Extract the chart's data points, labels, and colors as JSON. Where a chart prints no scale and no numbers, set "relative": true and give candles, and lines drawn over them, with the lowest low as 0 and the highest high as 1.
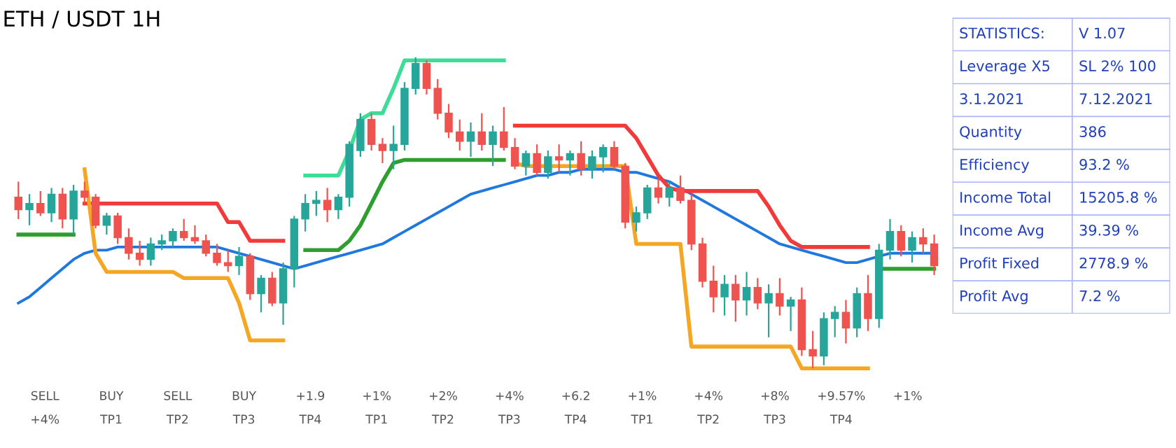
{
  "chart_data": [
    {
      "type": "candlestick",
      "title": "ETH / USDT 1H",
      "relative": true,
      "grid": false,
      "categories": [
        null,
        null,
        null,
        null,
        null,
        null,
        null,
        null,
        null,
        null,
        null,
        null,
        null,
        null,
        null,
        null,
        null,
        null,
        null,
        null,
        null,
        null,
        null,
        null,
        null,
        null,
        null,
        null,
        null,
        null,
        null,
        null,
        null,
        null,
        null,
        null,
        null,
        null,
        null,
        null,
        null,
        null,
        null,
        null,
        null,
        null,
        null,
        null,
        null,
        null,
        null,
        null,
        null,
        null,
        null,
        null,
        null,
        null,
        null,
        null,
        null,
        null,
        null,
        null,
        null,
        null,
        null,
        null,
        null,
        null,
        null,
        null,
        null,
        null,
        null,
        null,
        null,
        null,
        null,
        null,
        null,
        null,
        null,
        null
      ],
      "ohlc": [
        [
          0.55,
          0.6,
          0.48,
          0.51
        ],
        [
          0.51,
          0.56,
          0.46,
          0.53
        ],
        [
          0.53,
          0.57,
          0.49,
          0.5
        ],
        [
          0.5,
          0.58,
          0.47,
          0.56
        ],
        [
          0.56,
          0.58,
          0.45,
          0.48
        ],
        [
          0.48,
          0.59,
          0.43,
          0.57
        ],
        [
          0.57,
          0.6,
          0.53,
          0.55
        ],
        [
          0.55,
          0.56,
          0.45,
          0.46
        ],
        [
          0.46,
          0.5,
          0.43,
          0.49
        ],
        [
          0.49,
          0.5,
          0.4,
          0.42
        ],
        [
          0.42,
          0.45,
          0.35,
          0.37
        ],
        [
          0.37,
          0.41,
          0.33,
          0.35
        ],
        [
          0.35,
          0.42,
          0.33,
          0.4
        ],
        [
          0.4,
          0.43,
          0.38,
          0.41
        ],
        [
          0.41,
          0.45,
          0.39,
          0.44
        ],
        [
          0.44,
          0.48,
          0.41,
          0.42
        ],
        [
          0.42,
          0.46,
          0.4,
          0.41
        ],
        [
          0.41,
          0.43,
          0.36,
          0.37
        ],
        [
          0.37,
          0.4,
          0.33,
          0.34
        ],
        [
          0.34,
          0.38,
          0.31,
          0.33
        ],
        [
          0.33,
          0.39,
          0.3,
          0.36
        ],
        [
          0.36,
          0.37,
          0.22,
          0.24
        ],
        [
          0.24,
          0.3,
          0.18,
          0.29
        ],
        [
          0.29,
          0.31,
          0.2,
          0.21
        ],
        [
          0.21,
          0.34,
          0.14,
          0.32
        ],
        [
          0.32,
          0.49,
          0.26,
          0.48
        ],
        [
          0.48,
          0.56,
          0.44,
          0.53
        ],
        [
          0.53,
          0.57,
          0.49,
          0.54
        ],
        [
          0.54,
          0.58,
          0.47,
          0.51
        ],
        [
          0.51,
          0.56,
          0.48,
          0.55
        ],
        [
          0.55,
          0.73,
          0.52,
          0.72
        ],
        [
          0.7,
          0.82,
          0.68,
          0.8
        ],
        [
          0.8,
          0.82,
          0.7,
          0.72
        ],
        [
          0.72,
          0.74,
          0.66,
          0.7
        ],
        [
          0.7,
          0.78,
          0.64,
          0.72
        ],
        [
          0.72,
          0.92,
          0.7,
          0.9
        ],
        [
          0.9,
          1.0,
          0.88,
          0.98
        ],
        [
          0.98,
          0.99,
          0.88,
          0.9
        ],
        [
          0.9,
          0.93,
          0.8,
          0.82
        ],
        [
          0.82,
          0.85,
          0.74,
          0.76
        ],
        [
          0.76,
          0.8,
          0.7,
          0.73
        ],
        [
          0.73,
          0.79,
          0.68,
          0.76
        ],
        [
          0.76,
          0.82,
          0.7,
          0.72
        ],
        [
          0.72,
          0.78,
          0.65,
          0.76
        ],
        [
          0.76,
          0.84,
          0.7,
          0.71
        ],
        [
          0.71,
          0.74,
          0.64,
          0.65
        ],
        [
          0.65,
          0.7,
          0.62,
          0.69
        ],
        [
          0.69,
          0.72,
          0.62,
          0.63
        ],
        [
          0.63,
          0.7,
          0.61,
          0.68
        ],
        [
          0.68,
          0.72,
          0.63,
          0.67
        ],
        [
          0.67,
          0.7,
          0.62,
          0.69
        ],
        [
          0.69,
          0.73,
          0.62,
          0.64
        ],
        [
          0.64,
          0.7,
          0.61,
          0.68
        ],
        [
          0.68,
          0.72,
          0.63,
          0.71
        ],
        [
          0.71,
          0.73,
          0.64,
          0.65
        ],
        [
          0.65,
          0.66,
          0.45,
          0.47
        ],
        [
          0.47,
          0.52,
          0.44,
          0.5
        ],
        [
          0.5,
          0.59,
          0.48,
          0.58
        ],
        [
          0.58,
          0.61,
          0.53,
          0.55
        ],
        [
          0.55,
          0.6,
          0.52,
          0.58
        ],
        [
          0.58,
          0.62,
          0.53,
          0.54
        ],
        [
          0.54,
          0.56,
          0.38,
          0.4
        ],
        [
          0.4,
          0.42,
          0.26,
          0.28
        ],
        [
          0.28,
          0.33,
          0.18,
          0.23
        ],
        [
          0.23,
          0.3,
          0.17,
          0.27
        ],
        [
          0.27,
          0.3,
          0.15,
          0.22
        ],
        [
          0.22,
          0.31,
          0.17,
          0.26
        ],
        [
          0.26,
          0.29,
          0.19,
          0.21
        ],
        [
          0.21,
          0.27,
          0.1,
          0.24
        ],
        [
          0.24,
          0.29,
          0.17,
          0.2
        ],
        [
          0.2,
          0.23,
          0.12,
          0.22
        ],
        [
          0.22,
          0.26,
          0.04,
          0.06
        ],
        [
          0.06,
          0.12,
          0.0,
          0.04
        ],
        [
          0.04,
          0.18,
          0.01,
          0.16
        ],
        [
          0.16,
          0.2,
          0.1,
          0.18
        ],
        [
          0.18,
          0.22,
          0.08,
          0.13
        ],
        [
          0.13,
          0.26,
          0.1,
          0.24
        ],
        [
          0.24,
          0.3,
          0.12,
          0.16
        ],
        [
          0.16,
          0.4,
          0.13,
          0.38
        ],
        [
          0.38,
          0.48,
          0.35,
          0.44
        ],
        [
          0.44,
          0.46,
          0.36,
          0.38
        ],
        [
          0.38,
          0.44,
          0.34,
          0.42
        ],
        [
          0.42,
          0.45,
          0.37,
          0.4
        ],
        [
          0.4,
          0.43,
          0.3,
          0.33
        ]
      ],
      "colors": [
        "#ef5350",
        "#26a69a",
        "#ef5350",
        "#26a69a",
        "#ef5350",
        "#26a69a",
        "#ef5350",
        "#ef5350",
        "#26a69a",
        "#ef5350",
        "#ef5350",
        "#ef5350",
        "#26a69a",
        "#26a69a",
        "#26a69a",
        "#ef5350",
        "#ef5350",
        "#ef5350",
        "#ef5350",
        "#ef5350",
        "#26a69a",
        "#ef5350",
        "#26a69a",
        "#ef5350",
        "#26a69a",
        "#26a69a",
        "#26a69a",
        "#26a69a",
        "#ef5350",
        "#26a69a",
        "#26a69a",
        "#26a69a",
        "#ef5350",
        "#ef5350",
        "#26a69a",
        "#26a69a",
        "#26a69a",
        "#ef5350",
        "#ef5350",
        "#ef5350",
        "#ef5350",
        "#26a69a",
        "#ef5350",
        "#26a69a",
        "#ef5350",
        "#ef5350",
        "#26a69a",
        "#ef5350",
        "#26a69a",
        "#ef5350",
        "#26a69a",
        "#ef5350",
        "#26a69a",
        "#26a69a",
        "#ef5350",
        "#ef5350",
        "#26a69a",
        "#26a69a",
        "#ef5350",
        "#26a69a",
        "#ef5350",
        "#ef5350",
        "#ef5350",
        "#ef5350",
        "#26a69a",
        "#ef5350",
        "#26a69a",
        "#ef5350",
        "#26a69a",
        "#ef5350",
        "#26a69a",
        "#ef5350",
        "#ef5350",
        "#26a69a",
        "#26a69a",
        "#ef5350",
        "#26a69a",
        "#ef5350",
        "#26a69a",
        "#26a69a",
        "#ef5350",
        "#26a69a",
        "#ef5350",
        "#ef5350"
      ],
      "series": [
        {
          "type": "line",
          "color": "#1f77e0",
          "values": [
            0.21,
            0.23,
            0.26,
            0.29,
            0.32,
            0.35,
            0.37,
            0.38,
            0.38,
            0.39,
            0.39,
            0.39,
            0.39,
            0.39,
            0.39,
            0.39,
            0.39,
            0.39,
            0.39,
            0.38,
            0.37,
            0.36,
            0.35,
            0.34,
            0.33,
            0.32,
            0.33,
            0.34,
            0.35,
            0.36,
            0.37,
            0.38,
            0.39,
            0.4,
            0.42,
            0.44,
            0.46,
            0.48,
            0.5,
            0.52,
            0.54,
            0.56,
            0.57,
            0.58,
            0.59,
            0.6,
            0.61,
            0.62,
            0.62,
            0.63,
            0.63,
            0.64,
            0.64,
            0.64,
            0.64,
            0.63,
            0.63,
            0.62,
            0.61,
            0.6,
            0.58,
            0.56,
            0.54,
            0.52,
            0.5,
            0.48,
            0.46,
            0.44,
            0.42,
            0.4,
            0.39,
            0.38,
            0.37,
            0.36,
            0.35,
            0.34,
            0.34,
            0.35,
            0.36,
            0.37,
            0.37,
            0.37,
            0.37,
            0.37
          ]
        },
        {
          "type": "line",
          "color": "#f23a3a",
          "values": [
            null,
            null,
            null,
            null,
            null,
            null,
            0.53,
            0.53,
            0.53,
            0.53,
            0.53,
            0.53,
            0.53,
            0.53,
            0.53,
            0.53,
            0.53,
            0.53,
            0.53,
            0.47,
            0.47,
            0.41,
            0.41,
            0.41,
            0.41,
            null,
            null,
            null,
            null,
            null,
            null,
            null,
            null,
            null,
            null,
            null,
            null,
            null,
            null,
            null,
            null,
            null,
            null,
            null,
            null,
            0.78,
            0.78,
            0.78,
            0.78,
            0.78,
            0.78,
            0.78,
            0.78,
            0.78,
            0.78,
            0.78,
            0.74,
            0.68,
            0.62,
            0.58,
            0.57,
            0.57,
            0.57,
            0.57,
            0.57,
            0.57,
            0.57,
            0.57,
            0.52,
            0.46,
            0.41,
            0.39,
            0.39,
            0.39,
            0.39,
            0.39,
            0.39,
            0.39,
            null,
            null,
            null,
            null,
            null,
            null
          ]
        },
        {
          "type": "line",
          "color": "#2e9e2e",
          "values": [
            0.43,
            0.43,
            0.43,
            0.43,
            0.43,
            0.43,
            null,
            null,
            null,
            null,
            null,
            null,
            null,
            null,
            null,
            null,
            null,
            null,
            null,
            null,
            null,
            null,
            null,
            null,
            null,
            null,
            0.38,
            0.38,
            0.38,
            0.38,
            0.41,
            0.46,
            0.53,
            0.6,
            0.66,
            0.67,
            0.67,
            0.67,
            0.67,
            0.67,
            0.67,
            0.67,
            0.67,
            0.67,
            0.67,
            null,
            null,
            null,
            null,
            null,
            null,
            null,
            null,
            null,
            null,
            null,
            null,
            null,
            null,
            null,
            null,
            null,
            null,
            null,
            null,
            null,
            null,
            null,
            null,
            null,
            null,
            null,
            null,
            null,
            null,
            null,
            null,
            null,
            0.32,
            0.32,
            0.32,
            0.32,
            0.32,
            0.32
          ]
        },
        {
          "type": "line",
          "color": "#f5a623",
          "values": [
            null,
            null,
            null,
            null,
            null,
            null,
            0.64,
            0.37,
            0.31,
            0.31,
            0.31,
            0.31,
            0.31,
            0.31,
            0.31,
            0.29,
            0.29,
            0.29,
            0.29,
            0.29,
            0.21,
            0.09,
            0.09,
            0.09,
            0.09,
            null,
            null,
            null,
            null,
            null,
            null,
            null,
            null,
            null,
            null,
            null,
            null,
            null,
            null,
            null,
            null,
            null,
            null,
            null,
            null,
            0.66,
            0.65,
            0.65,
            0.65,
            0.65,
            0.65,
            0.65,
            0.65,
            0.65,
            0.65,
            0.65,
            0.4,
            0.4,
            0.4,
            0.4,
            0.4,
            0.07,
            0.07,
            0.07,
            0.07,
            0.07,
            0.07,
            0.07,
            0.07,
            0.07,
            0.07,
            0.0,
            0.0,
            0.0,
            0.0,
            0.0,
            0.0,
            0.0,
            null,
            null,
            null,
            null,
            null,
            null
          ]
        },
        {
          "type": "line",
          "color": "#3ddc97",
          "values": [
            null,
            null,
            null,
            null,
            null,
            null,
            null,
            null,
            null,
            null,
            null,
            null,
            null,
            null,
            null,
            null,
            null,
            null,
            null,
            null,
            null,
            null,
            null,
            null,
            null,
            null,
            0.62,
            0.62,
            0.62,
            0.62,
            0.7,
            0.8,
            0.82,
            0.82,
            0.9,
            0.99,
            0.99,
            0.99,
            0.99,
            0.99,
            0.99,
            0.99,
            0.99,
            0.99,
            0.99,
            null,
            null,
            null,
            null,
            null,
            null,
            null,
            null,
            null,
            null,
            null,
            null,
            null,
            null,
            null,
            null,
            null,
            null,
            null,
            null,
            null,
            null,
            null,
            null,
            null,
            null,
            null,
            null,
            null,
            null,
            null,
            null,
            null,
            null,
            null,
            null,
            null,
            null,
            null
          ]
        }
      ],
      "annotations": [
        "SELL",
        "BUY",
        "SELL",
        "BUY",
        "+1.9",
        "+1%",
        "+2%",
        "+4%",
        "+6.2",
        "+1%",
        "+4%",
        "+8%",
        "+9.57%",
        "+1%",
        "+4%",
        "TP1",
        "TP2",
        "TP3",
        "TP4",
        "TP1",
        "TP2",
        "TP3",
        "TP4",
        "TP1",
        "TP2",
        "TP3",
        "TP4"
      ]
    },
    {
      "type": "other",
      "annotations": [
        "STATISTICS:",
        "V 1.07",
        "Leverage X5",
        "SL 2% 100",
        "3.1.2021",
        "7.12.2021",
        "Quantity",
        "386",
        "Efficiency",
        "93.2 %",
        "Income Total",
        "15205.8 %",
        "Income Avg",
        "39.39 %",
        "Profit Fixed",
        "2778.9 %",
        "Profit Avg",
        "7.2 %"
      ]
    }
  ]
}
